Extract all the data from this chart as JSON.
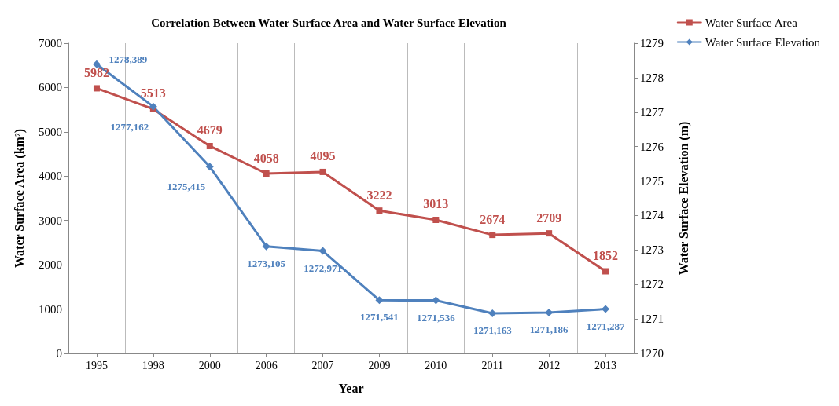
{
  "chart_data": {
    "type": "line",
    "title": "Correlation Between Water Surface Area and Water Surface Elevation",
    "xlabel": "Year",
    "ylabel": "Water Surface Area (km²)",
    "y2label": "Water Surface Elevation (m)",
    "categories": [
      "1995",
      "1998",
      "2000",
      "2006",
      "2007",
      "2009",
      "2010",
      "2011",
      "2012",
      "2013"
    ],
    "series": [
      {
        "name": "Water Surface Area",
        "color": "#c0504d",
        "marker": "square",
        "values": [
          5982,
          5513,
          4679,
          4058,
          4095,
          3222,
          3013,
          2674,
          2709,
          1852
        ],
        "value_labels": [
          "5982",
          "5513",
          "4679",
          "4058",
          "4095",
          "3222",
          "3013",
          "2674",
          "2709",
          "1852"
        ]
      },
      {
        "name": "Water Surface Elevation",
        "color": "#4f81bd",
        "marker": "diamond",
        "axis": "y2",
        "values": [
          1278.389,
          1277.162,
          1275.415,
          1273.105,
          1272.971,
          1271.541,
          1271.536,
          1271.163,
          1271.186,
          1271.287
        ],
        "value_labels": [
          "1278,389",
          "1277,162",
          "1275,415",
          "1273,105",
          "1272,971",
          "1271,541",
          "1271,536",
          "1271,163",
          "1271,186",
          "1271,287"
        ]
      }
    ],
    "ylim": [
      0,
      7000
    ],
    "yticks": [
      0,
      1000,
      2000,
      3000,
      4000,
      5000,
      6000,
      7000
    ],
    "y2lim": [
      1270,
      1279
    ],
    "y2ticks": [
      1270,
      1271,
      1272,
      1273,
      1274,
      1275,
      1276,
      1277,
      1278,
      1279
    ],
    "grid": "x",
    "legend": "top right",
    "line_style": "solid"
  }
}
